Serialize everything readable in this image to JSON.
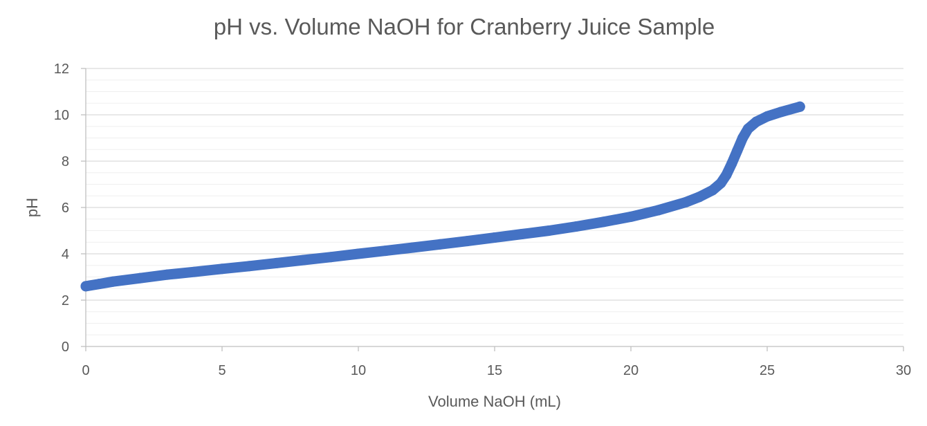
{
  "chart_data": {
    "type": "scatter",
    "title": "pH vs. Volume NaOH for Cranberry Juice Sample",
    "xlabel": "Volume NaOH (mL)",
    "ylabel": "pH",
    "xlim": [
      0,
      30
    ],
    "ylim": [
      0,
      12
    ],
    "x_ticks": [
      "0",
      "5",
      "10",
      "15",
      "20",
      "25",
      "30"
    ],
    "y_ticks": [
      "0",
      "2",
      "4",
      "6",
      "8",
      "10",
      "12"
    ],
    "grid": "major and minor horizontal",
    "legend": "none",
    "series_color": "#4472C4",
    "series": [
      {
        "points": [
          [
            0.0,
            2.6
          ],
          [
            0.5,
            2.7
          ],
          [
            1.0,
            2.8
          ],
          [
            2.0,
            2.95
          ],
          [
            3.0,
            3.1
          ],
          [
            4.0,
            3.22
          ],
          [
            5.0,
            3.35
          ],
          [
            6.0,
            3.47
          ],
          [
            7.0,
            3.6
          ],
          [
            8.0,
            3.73
          ],
          [
            9.0,
            3.86
          ],
          [
            10.0,
            4.0
          ],
          [
            11.0,
            4.13
          ],
          [
            12.0,
            4.27
          ],
          [
            13.0,
            4.41
          ],
          [
            14.0,
            4.55
          ],
          [
            15.0,
            4.7
          ],
          [
            16.0,
            4.85
          ],
          [
            17.0,
            5.0
          ],
          [
            18.0,
            5.18
          ],
          [
            19.0,
            5.38
          ],
          [
            20.0,
            5.6
          ],
          [
            21.0,
            5.88
          ],
          [
            22.0,
            6.22
          ],
          [
            22.5,
            6.45
          ],
          [
            23.0,
            6.75
          ],
          [
            23.3,
            7.05
          ],
          [
            23.5,
            7.4
          ],
          [
            23.7,
            7.9
          ],
          [
            23.9,
            8.45
          ],
          [
            24.1,
            9.0
          ],
          [
            24.3,
            9.4
          ],
          [
            24.6,
            9.7
          ],
          [
            25.0,
            9.93
          ],
          [
            25.5,
            10.12
          ],
          [
            26.2,
            10.35
          ]
        ]
      }
    ]
  }
}
